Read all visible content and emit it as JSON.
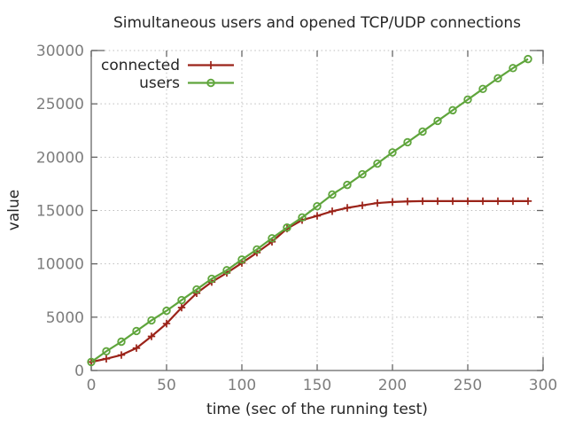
{
  "title": "Simultaneous users and opened TCP/UDP connections",
  "chart_data": {
    "type": "line",
    "title": "Simultaneous users and opened TCP/UDP connections",
    "xlabel": "time (sec of the running test)",
    "ylabel": "value",
    "xlim": [
      0,
      300
    ],
    "ylim": [
      0,
      30000
    ],
    "xticks": [
      0,
      50,
      100,
      150,
      200,
      250,
      300
    ],
    "yticks": [
      0,
      5000,
      10000,
      15000,
      20000,
      25000,
      30000
    ],
    "grid": true,
    "legend_position": "top-left",
    "x": [
      0,
      10,
      20,
      30,
      40,
      50,
      60,
      70,
      80,
      90,
      100,
      110,
      120,
      130,
      140,
      150,
      160,
      170,
      180,
      190,
      200,
      210,
      220,
      230,
      240,
      250,
      260,
      270,
      280,
      290
    ],
    "series": [
      {
        "name": "connected",
        "color": "#9b2319",
        "marker": "plus",
        "values": [
          800,
          1100,
          1450,
          2100,
          3200,
          4400,
          5900,
          7250,
          8300,
          9150,
          10080,
          11050,
          12070,
          13300,
          14100,
          14500,
          14930,
          15250,
          15480,
          15700,
          15800,
          15850,
          15880,
          15880,
          15880,
          15880,
          15880,
          15880,
          15880,
          15880
        ]
      },
      {
        "name": "users",
        "color": "#5fa53c",
        "marker": "circle",
        "values": [
          800,
          1800,
          2700,
          3700,
          4700,
          5600,
          6600,
          7600,
          8600,
          9400,
          10400,
          11350,
          12400,
          13400,
          14350,
          15400,
          16500,
          17400,
          18400,
          19400,
          20450,
          21400,
          22400,
          23400,
          24400,
          25400,
          26400,
          27400,
          28350,
          29200
        ]
      }
    ]
  },
  "colors": {
    "background": "#ffffff",
    "axis": "#666666",
    "grid": "#bdbdbd",
    "tick_label": "#7d7d7d",
    "text": "#262626"
  }
}
